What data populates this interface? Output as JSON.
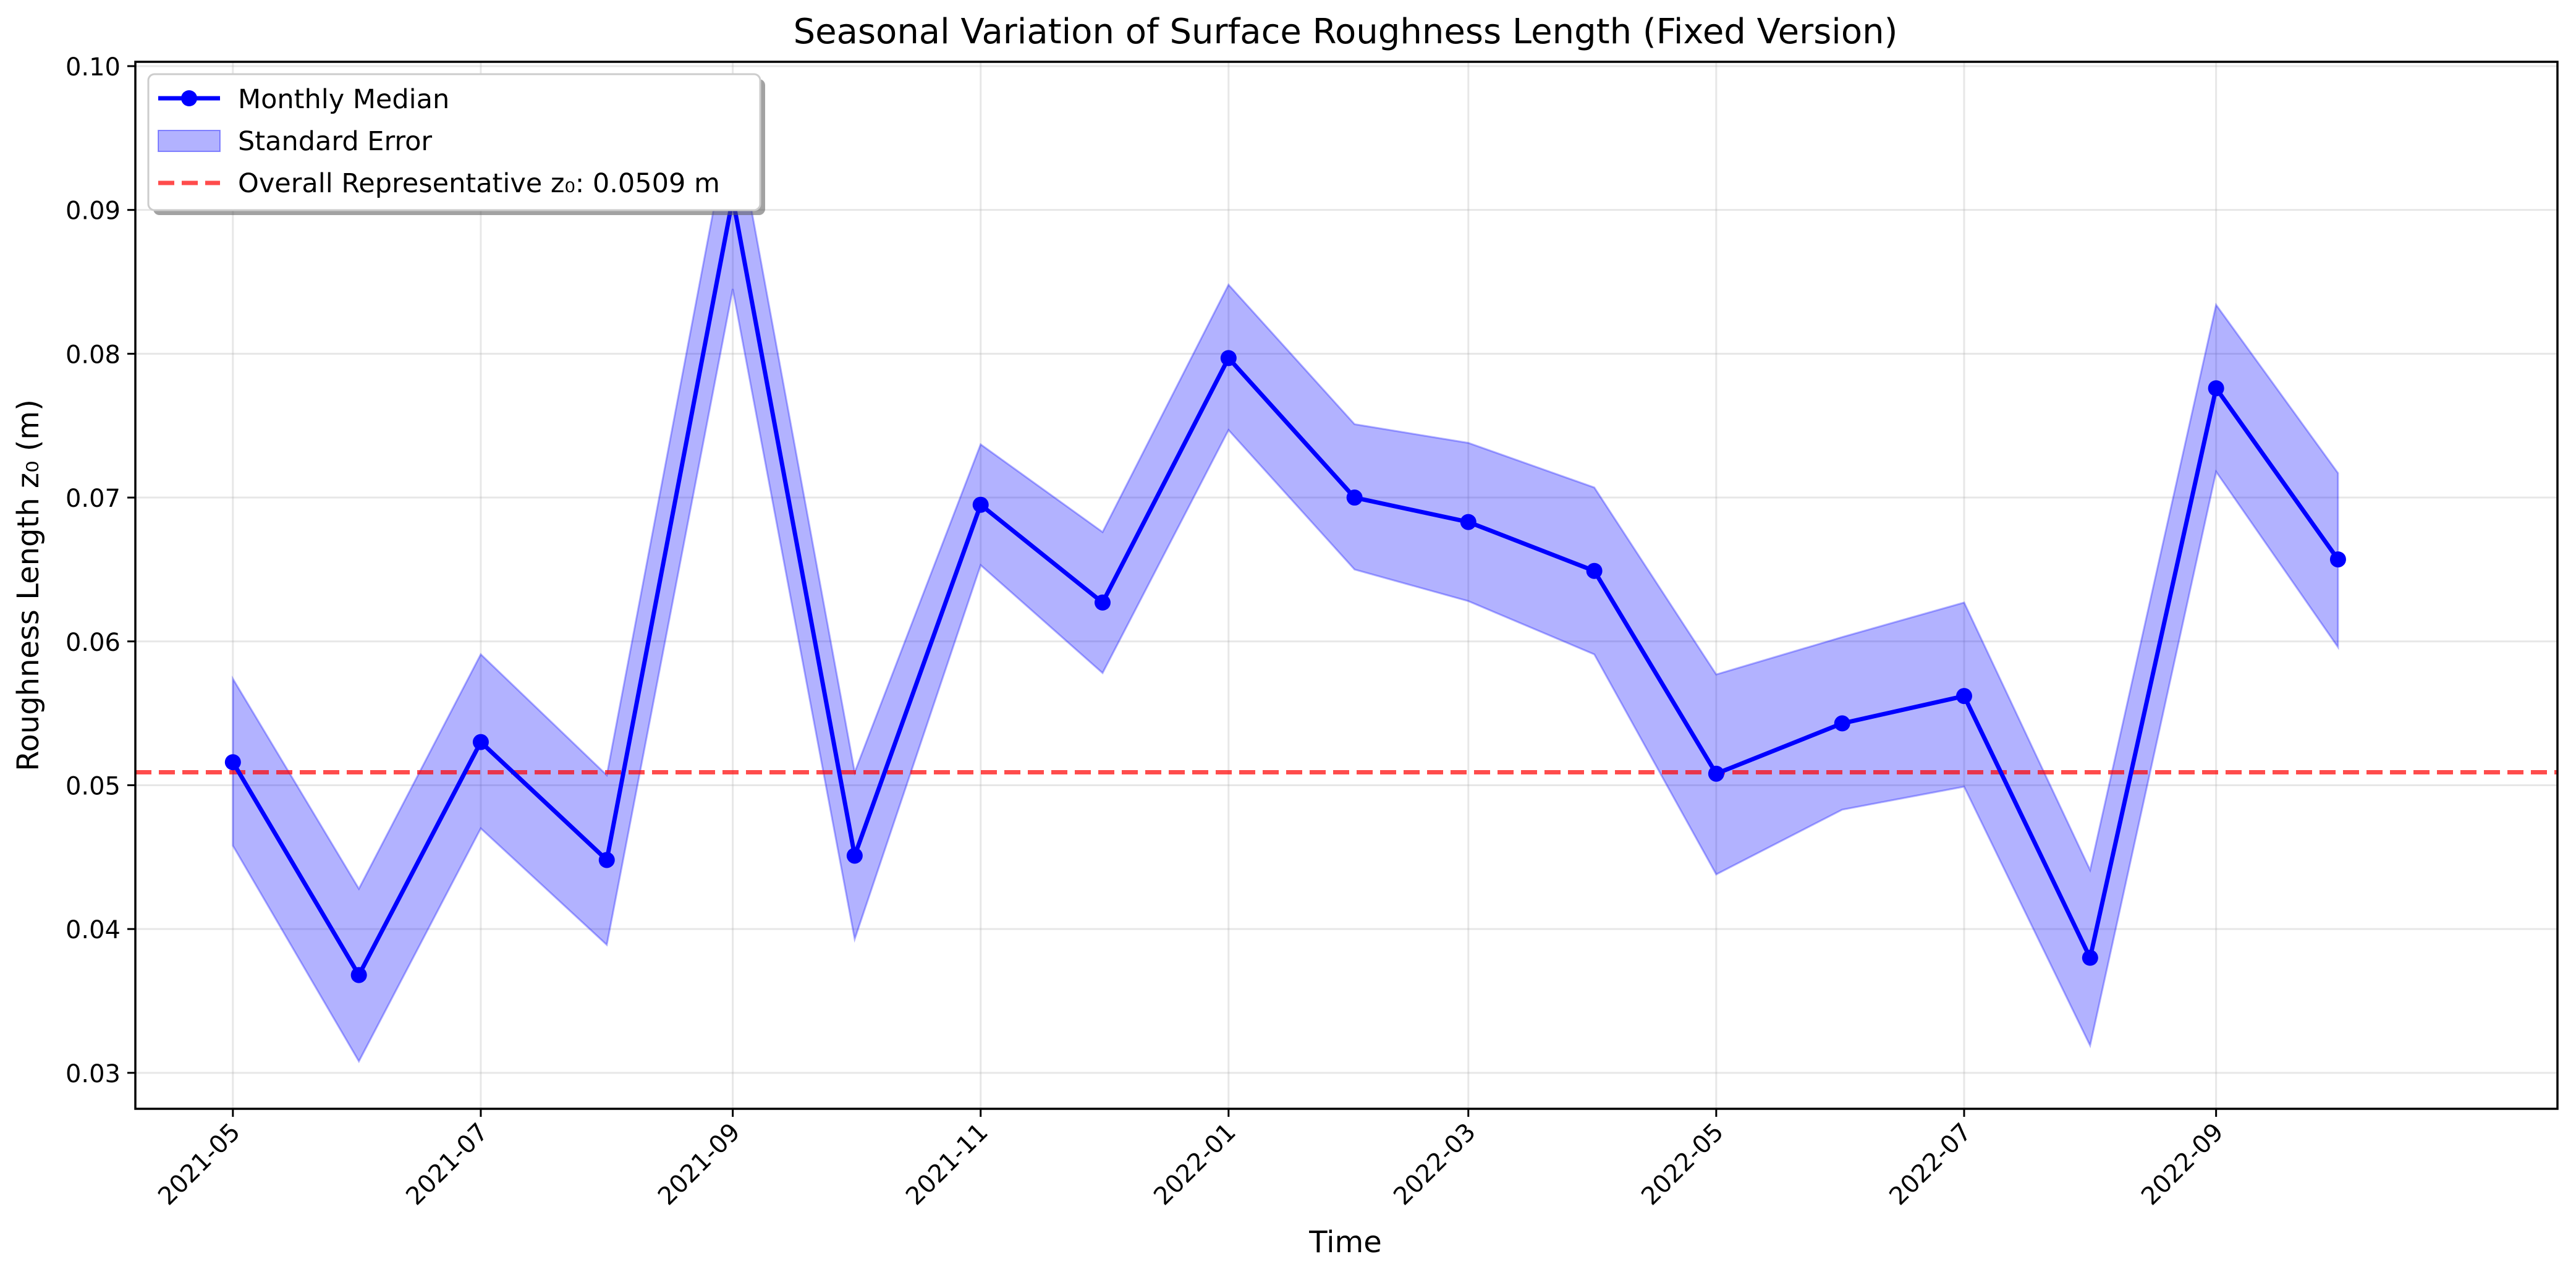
{
  "chart_data": {
    "type": "line",
    "title": "Seasonal Variation of Surface Roughness Length (Fixed Version)",
    "xlabel": "Time",
    "ylabel": "Roughness Length z₀ (m)",
    "x": [
      "2021-05",
      "2021-06",
      "2021-07",
      "2021-08",
      "2021-09",
      "2021-10",
      "2021-11",
      "2021-12",
      "2022-01",
      "2022-02",
      "2022-03",
      "2022-04",
      "2022-05",
      "2022-06",
      "2022-07",
      "2022-08",
      "2022-09",
      "2022-10"
    ],
    "xticks": [
      "2021-05",
      "2021-07",
      "2021-09",
      "2021-11",
      "2022-01",
      "2022-03",
      "2022-05",
      "2022-07",
      "2022-09"
    ],
    "yticks": [
      "0.03",
      "0.04",
      "0.05",
      "0.06",
      "0.07",
      "0.08",
      "0.09",
      "0.10"
    ],
    "ylim": [
      0.0275,
      0.1003
    ],
    "xlim": [
      "2021-04-07",
      "2022-11-24"
    ],
    "grid": true,
    "legend_position": "top-left",
    "series": [
      {
        "name": "Monthly Median",
        "color": "#0000ff",
        "marker": "circle",
        "values": [
          0.0516,
          0.0368,
          0.053,
          0.0448,
          0.0908,
          0.0451,
          0.0695,
          0.0627,
          0.0797,
          0.07,
          0.0683,
          0.0649,
          0.0508,
          0.0543,
          0.0562,
          0.038,
          0.0776,
          0.0657
        ]
      },
      {
        "name": "Standard Error",
        "type": "band",
        "color": "#0000ff",
        "lower": [
          0.0458,
          0.0308,
          0.047,
          0.0389,
          0.0845,
          0.0393,
          0.0653,
          0.0578,
          0.0747,
          0.065,
          0.0628,
          0.0591,
          0.0438,
          0.0483,
          0.0499,
          0.0319,
          0.0718,
          0.0596
        ],
        "upper": [
          0.0574,
          0.0428,
          0.0591,
          0.0507,
          0.0971,
          0.0509,
          0.0737,
          0.0676,
          0.0848,
          0.0751,
          0.0738,
          0.0707,
          0.0577,
          0.0603,
          0.0627,
          0.0441,
          0.0834,
          0.0717
        ]
      },
      {
        "name": "Overall Representative z₀: 0.0509 m",
        "type": "hline",
        "color": "#ff0000",
        "value": 0.0509
      }
    ]
  }
}
